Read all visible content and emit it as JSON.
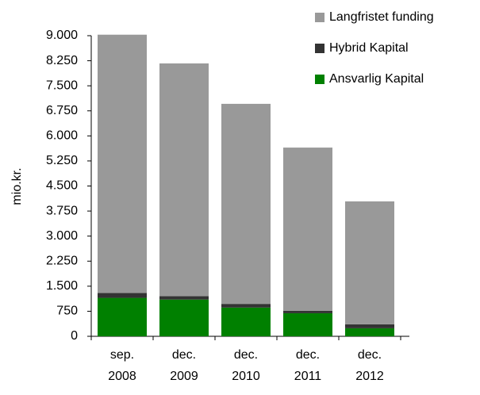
{
  "chart_data": {
    "type": "bar",
    "stacked": true,
    "y_label": "mio.kr.",
    "categories": [
      [
        "sep.",
        "2008"
      ],
      [
        "dec.",
        "2009"
      ],
      [
        "dec.",
        "2010"
      ],
      [
        "dec.",
        "2011"
      ],
      [
        "dec.",
        "2012"
      ]
    ],
    "series": [
      {
        "name": "Ansvarlig Kapital",
        "color": "#008000",
        "values": [
          1150,
          1100,
          860,
          690,
          240
        ]
      },
      {
        "name": "Hybrid Kapital",
        "color": "#333333",
        "values": [
          150,
          100,
          110,
          70,
          120
        ]
      },
      {
        "name": "Langfristet funding",
        "color": "#999999",
        "values": [
          7730,
          6970,
          5990,
          4890,
          3680
        ]
      }
    ],
    "ylim": [
      0,
      9000
    ],
    "yticks": [
      0,
      750,
      {
        "value": 1500,
        "label": "1.500"
      },
      {
        "value": 2250,
        "label": "2.250"
      },
      {
        "value": 3000,
        "label": "3.000"
      },
      {
        "value": 3750,
        "label": "3.750"
      },
      {
        "value": 4500,
        "label": "4.500"
      },
      {
        "value": 5250,
        "label": "5.250"
      },
      {
        "value": 6000,
        "label": "6.000"
      },
      {
        "value": 6750,
        "label": "6.750"
      },
      {
        "value": 7500,
        "label": "7.500"
      },
      {
        "value": 8250,
        "label": "8.250"
      },
      {
        "value": 9000,
        "label": "9.000"
      }
    ],
    "legend": "top-right"
  }
}
